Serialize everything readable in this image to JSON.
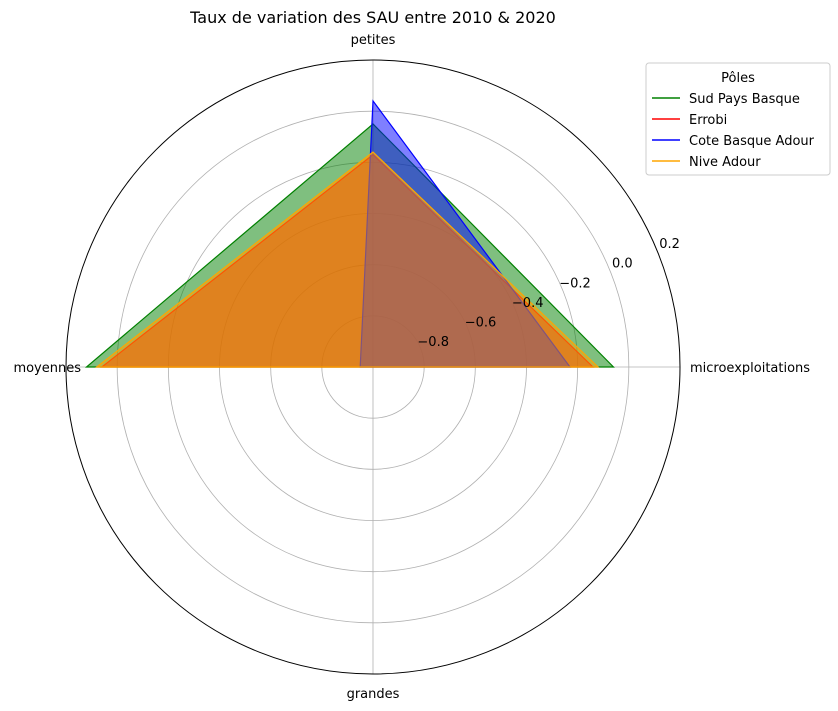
{
  "chart_data": {
    "type": "radar",
    "title": "Taux de variation des SAU entre 2010 & 2020",
    "categories": [
      "microexploitations",
      "petites",
      "moyennes",
      "grandes"
    ],
    "rlim": [
      -1.0,
      0.2
    ],
    "rticks": [
      -0.8,
      -0.6,
      -0.4,
      -0.2,
      0.0,
      0.2
    ],
    "rtick_labels": [
      "−0.8",
      "−0.6",
      "−0.4",
      "−0.2",
      "0.0",
      "0.2"
    ],
    "grid": true,
    "legend": {
      "title": "Pôles",
      "placement": "upper-right-outside"
    },
    "series": [
      {
        "name": "Sud Pays Basque",
        "color": "#008000",
        "values": [
          -0.06,
          -0.05,
          0.12,
          -1.0
        ]
      },
      {
        "name": "Errobi",
        "color": "#ff0000",
        "values": [
          -0.14,
          -0.17,
          0.06,
          -1.0
        ]
      },
      {
        "name": "Cote Basque Adour",
        "color": "#0000ff",
        "values": [
          -0.23,
          0.04,
          -0.95,
          -1.0
        ]
      },
      {
        "name": "Nive Adour",
        "color": "#ffa500",
        "values": [
          -0.12,
          -0.16,
          0.08,
          -1.0
        ]
      }
    ]
  }
}
